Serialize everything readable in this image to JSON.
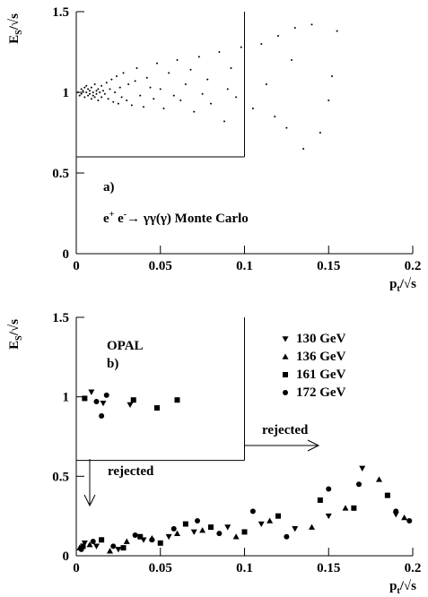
{
  "chart_data": [
    {
      "type": "scatter",
      "panel": "a)",
      "annotation": [
        "e",
        "+",
        " e",
        "-",
        "→ γγ(γ) Monte Carlo"
      ],
      "ylabel": {
        "base": "E",
        "sub": "S",
        "tail": "/√s"
      },
      "xlabel": {
        "base": "p",
        "sub": "t",
        "tail": "/√s"
      },
      "xlim": [
        0,
        0.2
      ],
      "xticks": [
        0,
        0.05,
        0.1,
        0.15,
        0.2
      ],
      "ylim": [
        0,
        1.5
      ],
      "yticks": [
        0,
        0.5,
        1,
        1.5
      ],
      "cut_box": {
        "x": [
          0,
          0.1
        ],
        "y": [
          0.6,
          1.5
        ]
      },
      "color": "#000000",
      "x": [
        0.001,
        0.002,
        0.003,
        0.003,
        0.004,
        0.005,
        0.005,
        0.006,
        0.006,
        0.007,
        0.007,
        0.008,
        0.008,
        0.009,
        0.009,
        0.01,
        0.01,
        0.011,
        0.011,
        0.012,
        0.012,
        0.013,
        0.013,
        0.014,
        0.015,
        0.015,
        0.016,
        0.017,
        0.018,
        0.019,
        0.02,
        0.021,
        0.022,
        0.023,
        0.024,
        0.025,
        0.026,
        0.027,
        0.028,
        0.03,
        0.031,
        0.033,
        0.035,
        0.036,
        0.038,
        0.04,
        0.042,
        0.044,
        0.046,
        0.048,
        0.05,
        0.052,
        0.055,
        0.058,
        0.06,
        0.062,
        0.065,
        0.068,
        0.07,
        0.073,
        0.075,
        0.078,
        0.08,
        0.085,
        0.088,
        0.09,
        0.092,
        0.095,
        0.098,
        0.105,
        0.11,
        0.113,
        0.118,
        0.12,
        0.125,
        0.128,
        0.13,
        0.135,
        0.14,
        0.145,
        0.15,
        0.152,
        0.155
      ],
      "values": [
        1.0,
        0.98,
        1.02,
        0.99,
        1.01,
        1.03,
        0.97,
        1.0,
        1.04,
        0.98,
        1.02,
        0.99,
        1.01,
        0.96,
        1.03,
        1.0,
        0.98,
        1.05,
        0.97,
        1.01,
        0.99,
        1.02,
        0.95,
        1.0,
        1.04,
        0.97,
        1.01,
        0.99,
        1.06,
        0.96,
        1.02,
        1.08,
        0.94,
        1.0,
        1.1,
        0.93,
        1.03,
        0.97,
        1.12,
        0.95,
        1.05,
        0.92,
        1.07,
        1.15,
        0.98,
        0.91,
        1.09,
        1.03,
        0.96,
        1.18,
        1.02,
        0.9,
        1.12,
        0.98,
        1.2,
        0.95,
        1.05,
        1.14,
        0.88,
        1.22,
        0.99,
        1.08,
        0.93,
        1.25,
        0.82,
        1.02,
        1.15,
        0.97,
        1.28,
        0.9,
        1.3,
        1.05,
        0.85,
        1.35,
        0.78,
        1.2,
        1.4,
        0.65,
        1.42,
        0.75,
        0.95,
        1.1,
        1.38
      ]
    },
    {
      "type": "scatter",
      "panel": "b)",
      "experiment": "OPAL",
      "rejected_labels": [
        "rejected",
        "rejected"
      ],
      "ylabel": {
        "base": "E",
        "sub": "S",
        "tail": "/√s"
      },
      "xlabel": {
        "base": "p",
        "sub": "t",
        "tail": "/√s"
      },
      "xlim": [
        0,
        0.2
      ],
      "xticks": [
        0,
        0.05,
        0.1,
        0.15,
        0.2
      ],
      "ylim": [
        0,
        1.5
      ],
      "yticks": [
        0,
        0.5,
        1,
        1.5
      ],
      "cut_box": {
        "x": [
          0,
          0.1
        ],
        "y": [
          0.6,
          1.5
        ]
      },
      "legend": "top-right",
      "series": [
        {
          "name": "130 GeV",
          "marker": "triangle-down",
          "color": "#000000",
          "x": [
            0.009,
            0.016,
            0.032,
            0.005,
            0.012,
            0.025,
            0.04,
            0.055,
            0.07,
            0.09,
            0.11,
            0.13,
            0.15,
            0.17,
            0.19
          ],
          "values": [
            1.03,
            0.96,
            0.95,
            0.08,
            0.06,
            0.04,
            0.1,
            0.12,
            0.15,
            0.18,
            0.2,
            0.17,
            0.25,
            0.55,
            0.26
          ]
        },
        {
          "name": "136 GeV",
          "marker": "triangle-up",
          "color": "#000000",
          "x": [
            0.002,
            0.008,
            0.02,
            0.03,
            0.045,
            0.06,
            0.075,
            0.095,
            0.115,
            0.14,
            0.16,
            0.18,
            0.195
          ],
          "values": [
            0.05,
            0.07,
            0.03,
            0.09,
            0.11,
            0.14,
            0.16,
            0.12,
            0.22,
            0.18,
            0.3,
            0.48,
            0.24
          ]
        },
        {
          "name": "161 GeV",
          "marker": "square",
          "color": "#000000",
          "x": [
            0.005,
            0.034,
            0.048,
            0.06,
            0.004,
            0.015,
            0.028,
            0.038,
            0.05,
            0.065,
            0.08,
            0.1,
            0.12,
            0.145,
            0.165,
            0.185
          ],
          "values": [
            0.99,
            0.98,
            0.93,
            0.98,
            0.06,
            0.1,
            0.05,
            0.12,
            0.08,
            0.2,
            0.18,
            0.15,
            0.25,
            0.35,
            0.3,
            0.38
          ]
        },
        {
          "name": "172 GeV",
          "marker": "circle",
          "color": "#000000",
          "x": [
            0.012,
            0.015,
            0.018,
            0.003,
            0.01,
            0.022,
            0.035,
            0.045,
            0.058,
            0.072,
            0.085,
            0.105,
            0.125,
            0.15,
            0.168,
            0.19,
            0.198
          ],
          "values": [
            0.97,
            0.88,
            1.01,
            0.04,
            0.09,
            0.06,
            0.13,
            0.1,
            0.17,
            0.22,
            0.14,
            0.28,
            0.12,
            0.42,
            0.45,
            0.28,
            0.22
          ]
        }
      ]
    }
  ]
}
